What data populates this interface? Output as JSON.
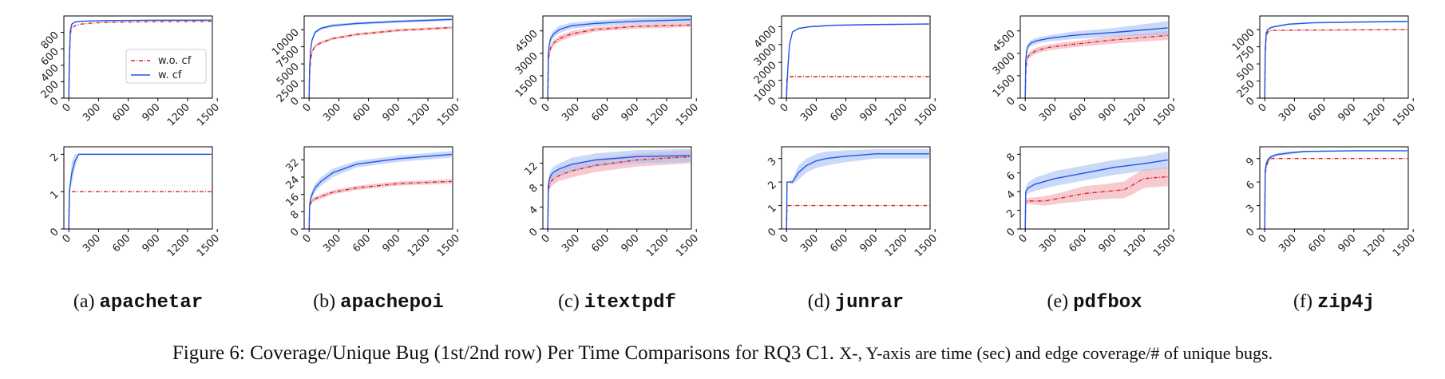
{
  "caption": {
    "label": "Figure 6:",
    "main": "Coverage/Unique Bug (1st/2nd row) Per Time Comparisons for RQ3 C1.",
    "axes_note": "X-, Y-axis are time (sec) and edge coverage/# of unique bugs."
  },
  "subfigures": [
    {
      "prefix": "(a)",
      "name": "apachetar"
    },
    {
      "prefix": "(b)",
      "name": "apachepoi"
    },
    {
      "prefix": "(c)",
      "name": "itextpdf"
    },
    {
      "prefix": "(d)",
      "name": "junrar"
    },
    {
      "prefix": "(e)",
      "name": "pdfbox"
    },
    {
      "prefix": "(f)",
      "name": "zip4j"
    }
  ],
  "colors": {
    "wo_cf": "#d62728",
    "w_cf": "#1f55e6",
    "wo_cf_band": "#f2a7b1",
    "w_cf_band": "#a9c0f5"
  },
  "chart_data": [
    {
      "type": "line",
      "subfigure": "apachetar",
      "metric": "coverage",
      "xlim": [
        -50,
        1450
      ],
      "ylim": [
        0,
        1000
      ],
      "xticks": [
        0,
        300,
        600,
        900,
        1200,
        1500
      ],
      "yticks": [
        0,
        200,
        400,
        600,
        800
      ],
      "legend": "center-right",
      "series": [
        {
          "name": "w.o. cf",
          "style": "dashdot",
          "x": [
            0,
            5,
            15,
            30,
            60,
            120,
            240,
            480,
            900,
            1440
          ],
          "y": [
            0,
            400,
            780,
            850,
            880,
            900,
            915,
            925,
            930,
            935
          ]
        },
        {
          "name": "w. cf",
          "style": "solid",
          "x": [
            0,
            5,
            15,
            30,
            60,
            120,
            240,
            480,
            900,
            1440
          ],
          "y": [
            0,
            450,
            820,
            900,
            925,
            935,
            940,
            945,
            948,
            950
          ],
          "band": [
            15,
            15,
            10,
            8,
            8,
            6,
            5,
            5,
            5,
            5
          ]
        }
      ]
    },
    {
      "type": "line",
      "subfigure": "apachepoi",
      "metric": "coverage",
      "xlim": [
        -50,
        1450
      ],
      "ylim": [
        0,
        12000
      ],
      "xticks": [
        0,
        300,
        600,
        900,
        1200,
        1500
      ],
      "yticks": [
        0,
        2500,
        5000,
        7500,
        10000
      ],
      "series": [
        {
          "name": "w.o. cf",
          "style": "dashdot",
          "x": [
            0,
            5,
            15,
            30,
            60,
            120,
            240,
            480,
            900,
            1440
          ],
          "y": [
            0,
            3500,
            5500,
            6800,
            7600,
            8100,
            8700,
            9300,
            9900,
            10300
          ],
          "band": [
            0,
            300,
            300,
            250,
            200,
            200,
            200,
            200,
            200,
            200
          ]
        },
        {
          "name": "w. cf",
          "style": "solid",
          "x": [
            0,
            5,
            15,
            30,
            60,
            120,
            240,
            480,
            900,
            1440
          ],
          "y": [
            0,
            4500,
            7000,
            8500,
            9600,
            10200,
            10600,
            10900,
            11200,
            11500
          ],
          "band": [
            0,
            300,
            300,
            250,
            250,
            200,
            200,
            200,
            200,
            200
          ]
        }
      ]
    },
    {
      "type": "line",
      "subfigure": "itextpdf",
      "metric": "coverage",
      "xlim": [
        -50,
        1450
      ],
      "ylim": [
        0,
        5500
      ],
      "xticks": [
        0,
        300,
        600,
        900,
        1200,
        1500
      ],
      "yticks": [
        0,
        1500,
        3000,
        4500
      ],
      "series": [
        {
          "name": "w.o. cf",
          "style": "dashdot",
          "x": [
            0,
            5,
            15,
            30,
            60,
            120,
            240,
            480,
            900,
            1440
          ],
          "y": [
            0,
            2500,
            3000,
            3400,
            3700,
            4000,
            4300,
            4600,
            4800,
            4900
          ],
          "band": [
            0,
            200,
            200,
            200,
            200,
            200,
            200,
            150,
            150,
            150
          ]
        },
        {
          "name": "w. cf",
          "style": "solid",
          "x": [
            0,
            5,
            15,
            30,
            60,
            120,
            240,
            480,
            900,
            1440
          ],
          "y": [
            0,
            3000,
            3600,
            4000,
            4300,
            4600,
            4850,
            5000,
            5150,
            5250
          ],
          "band": [
            0,
            250,
            250,
            250,
            250,
            250,
            200,
            200,
            200,
            200
          ]
        }
      ]
    },
    {
      "type": "line",
      "subfigure": "junrar",
      "metric": "coverage",
      "xlim": [
        -50,
        1450
      ],
      "ylim": [
        0,
        4600
      ],
      "xticks": [
        0,
        300,
        600,
        900,
        1200,
        1500
      ],
      "yticks": [
        0,
        1000,
        2000,
        3000,
        4000
      ],
      "series": [
        {
          "name": "w.o. cf",
          "style": "dashdot",
          "x": [
            0,
            5,
            1440
          ],
          "y": [
            0,
            1200,
            1200
          ]
        },
        {
          "name": "w. cf",
          "style": "solid",
          "x": [
            0,
            5,
            15,
            30,
            60,
            120,
            240,
            480,
            900,
            1440
          ],
          "y": [
            0,
            800,
            1800,
            3000,
            3700,
            3900,
            4000,
            4080,
            4120,
            4150
          ],
          "band": [
            0,
            80,
            80,
            60,
            50,
            40,
            40,
            40,
            40,
            40
          ]
        }
      ]
    },
    {
      "type": "line",
      "subfigure": "pdfbox",
      "metric": "coverage",
      "xlim": [
        -50,
        1450
      ],
      "ylim": [
        0,
        5500
      ],
      "xticks": [
        0,
        300,
        600,
        900,
        1200,
        1500
      ],
      "yticks": [
        0,
        1500,
        3000,
        4500
      ],
      "series": [
        {
          "name": "w.o. cf",
          "style": "dashdot",
          "x": [
            0,
            5,
            15,
            30,
            60,
            120,
            240,
            480,
            900,
            1440
          ],
          "y": [
            0,
            1500,
            2500,
            2800,
            3000,
            3200,
            3400,
            3600,
            3900,
            4200
          ],
          "band": [
            0,
            200,
            200,
            200,
            200,
            200,
            200,
            200,
            250,
            300
          ]
        },
        {
          "name": "w. cf",
          "style": "solid",
          "x": [
            0,
            5,
            15,
            30,
            60,
            120,
            240,
            480,
            900,
            1440
          ],
          "y": [
            0,
            2500,
            3200,
            3500,
            3700,
            3850,
            4000,
            4200,
            4400,
            4700
          ],
          "band": [
            0,
            200,
            200,
            200,
            200,
            200,
            200,
            250,
            300,
            450
          ]
        }
      ]
    },
    {
      "type": "line",
      "subfigure": "zip4j",
      "metric": "coverage",
      "xlim": [
        -50,
        1450
      ],
      "ylim": [
        0,
        1200
      ],
      "xticks": [
        0,
        300,
        600,
        900,
        1200,
        1500
      ],
      "yticks": [
        0,
        250,
        500,
        750,
        1000
      ],
      "series": [
        {
          "name": "w.o. cf",
          "style": "dashdot",
          "x": [
            0,
            5,
            15,
            30,
            60,
            1440
          ],
          "y": [
            0,
            600,
            900,
            960,
            990,
            1000
          ],
          "band": [
            0,
            10,
            10,
            5,
            5,
            5
          ]
        },
        {
          "name": "w. cf",
          "style": "solid",
          "x": [
            0,
            5,
            15,
            30,
            60,
            120,
            240,
            480,
            900,
            1440
          ],
          "y": [
            0,
            700,
            950,
            1000,
            1030,
            1050,
            1080,
            1100,
            1110,
            1120
          ],
          "band": [
            0,
            15,
            15,
            15,
            15,
            15,
            12,
            10,
            10,
            10
          ]
        }
      ]
    },
    {
      "type": "line",
      "subfigure": "apachetar",
      "metric": "unique bugs",
      "xlim": [
        -50,
        1450
      ],
      "ylim": [
        0,
        2.2
      ],
      "xticks": [
        0,
        300,
        600,
        900,
        1200,
        1500
      ],
      "yticks": [
        0,
        1,
        2
      ],
      "series": [
        {
          "name": "w.o. cf",
          "style": "dashdot",
          "x": [
            0,
            5,
            1440
          ],
          "y": [
            0,
            1,
            1
          ]
        },
        {
          "name": "w. cf",
          "style": "solid",
          "x": [
            0,
            5,
            30,
            60,
            100,
            1440
          ],
          "y": [
            0,
            1,
            1.5,
            1.8,
            2,
            2
          ],
          "band": [
            0,
            0,
            0.3,
            0.2,
            0,
            0
          ]
        }
      ]
    },
    {
      "type": "line",
      "subfigure": "apachepoi",
      "metric": "unique bugs",
      "xlim": [
        -50,
        1450
      ],
      "ylim": [
        0,
        38
      ],
      "xticks": [
        0,
        300,
        600,
        900,
        1200,
        1500
      ],
      "yticks": [
        0,
        8,
        16,
        24,
        32
      ],
      "series": [
        {
          "name": "w.o. cf",
          "style": "dashdot",
          "x": [
            0,
            5,
            15,
            30,
            60,
            120,
            240,
            480,
            900,
            1440
          ],
          "y": [
            0,
            10,
            12,
            13,
            14,
            15,
            17,
            19,
            21,
            22
          ],
          "band": [
            0,
            1,
            1,
            1,
            1,
            1,
            1,
            1,
            1,
            1
          ]
        },
        {
          "name": "w. cf",
          "style": "solid",
          "x": [
            0,
            5,
            15,
            30,
            60,
            120,
            240,
            480,
            900,
            1440
          ],
          "y": [
            0,
            11,
            14,
            16,
            19,
            22,
            26,
            30,
            32.5,
            34.5
          ],
          "band": [
            0,
            2,
            2,
            2,
            2,
            2,
            2,
            1.5,
            1.5,
            1.5
          ]
        }
      ]
    },
    {
      "type": "line",
      "subfigure": "itextpdf",
      "metric": "unique bugs",
      "xlim": [
        -50,
        1450
      ],
      "ylim": [
        0,
        15
      ],
      "xticks": [
        0,
        300,
        600,
        900,
        1200,
        1500
      ],
      "yticks": [
        0,
        4,
        8,
        12
      ],
      "series": [
        {
          "name": "w.o. cf",
          "style": "dashdot",
          "x": [
            0,
            5,
            15,
            30,
            60,
            120,
            240,
            480,
            900,
            1440
          ],
          "y": [
            0,
            7,
            8,
            8.6,
            9.2,
            9.8,
            10.6,
            11.6,
            12.6,
            13.2
          ],
          "band": [
            0,
            1,
            1,
            1,
            1,
            1,
            1.2,
            1.2,
            1.2,
            1.2
          ]
        },
        {
          "name": "w. cf",
          "style": "solid",
          "x": [
            0,
            5,
            15,
            30,
            60,
            120,
            240,
            480,
            900,
            1440
          ],
          "y": [
            0,
            8,
            9,
            9.8,
            10.4,
            11,
            11.8,
            12.6,
            13.2,
            13.4
          ],
          "band": [
            0,
            1,
            1,
            1,
            1,
            1,
            1.2,
            1.2,
            1.2,
            1.2
          ]
        }
      ]
    },
    {
      "type": "line",
      "subfigure": "junrar",
      "metric": "unique bugs",
      "xlim": [
        -50,
        1450
      ],
      "ylim": [
        0,
        3.5
      ],
      "xticks": [
        0,
        300,
        600,
        900,
        1200,
        1500
      ],
      "yticks": [
        0,
        1,
        2,
        3
      ],
      "series": [
        {
          "name": "w.o. cf",
          "style": "dashdot",
          "x": [
            0,
            5,
            1440
          ],
          "y": [
            0,
            1,
            1
          ]
        },
        {
          "name": "w. cf",
          "style": "solid",
          "x": [
            0,
            5,
            60,
            120,
            200,
            300,
            400,
            600,
            900,
            1440
          ],
          "y": [
            0,
            2,
            2,
            2.4,
            2.7,
            2.9,
            3,
            3.1,
            3.2,
            3.2
          ],
          "band": [
            0,
            0,
            0.1,
            0.3,
            0.3,
            0.3,
            0.3,
            0.25,
            0.2,
            0.2
          ]
        }
      ]
    },
    {
      "type": "line",
      "subfigure": "pdfbox",
      "metric": "unique bugs",
      "xlim": [
        -50,
        1450
      ],
      "ylim": [
        0,
        8.8
      ],
      "xticks": [
        0,
        300,
        600,
        900,
        1200,
        1500
      ],
      "yticks": [
        0,
        2,
        4,
        6,
        8
      ],
      "series": [
        {
          "name": "w.o. cf",
          "style": "dashdot",
          "x": [
            0,
            5,
            200,
            400,
            600,
            800,
            1000,
            1100,
            1200,
            1440
          ],
          "y": [
            0,
            3,
            3,
            3.4,
            3.8,
            4,
            4.2,
            4.8,
            5.4,
            5.6
          ],
          "band": [
            0,
            0.3,
            0.5,
            0.6,
            0.8,
            0.8,
            0.9,
            1,
            1,
            1
          ]
        },
        {
          "name": "w. cf",
          "style": "solid",
          "x": [
            0,
            5,
            30,
            100,
            300,
            600,
            900,
            1200,
            1440
          ],
          "y": [
            0,
            4,
            4.4,
            4.8,
            5.4,
            6,
            6.6,
            7,
            7.4
          ],
          "band": [
            0,
            0.5,
            0.6,
            0.7,
            0.8,
            0.8,
            0.8,
            0.8,
            0.9
          ]
        }
      ]
    },
    {
      "type": "line",
      "subfigure": "zip4j",
      "metric": "unique bugs",
      "xlim": [
        -50,
        1450
      ],
      "ylim": [
        0,
        10.5
      ],
      "xticks": [
        0,
        300,
        600,
        900,
        1200,
        1500
      ],
      "yticks": [
        0,
        3,
        6,
        9
      ],
      "series": [
        {
          "name": "w.o. cf",
          "style": "dashdot",
          "x": [
            0,
            5,
            15,
            30,
            60,
            1440
          ],
          "y": [
            0,
            7,
            8,
            8.5,
            9,
            9
          ],
          "band": [
            0,
            0.5,
            0.4,
            0.3,
            0,
            0
          ]
        },
        {
          "name": "w. cf",
          "style": "solid",
          "x": [
            0,
            5,
            15,
            30,
            60,
            120,
            240,
            400,
            900,
            1440
          ],
          "y": [
            0,
            7.5,
            8.3,
            8.8,
            9.2,
            9.5,
            9.7,
            9.9,
            10,
            10
          ],
          "band": [
            0,
            0.5,
            0.4,
            0.3,
            0.2,
            0.2,
            0.2,
            0.1,
            0,
            0
          ]
        }
      ]
    }
  ]
}
